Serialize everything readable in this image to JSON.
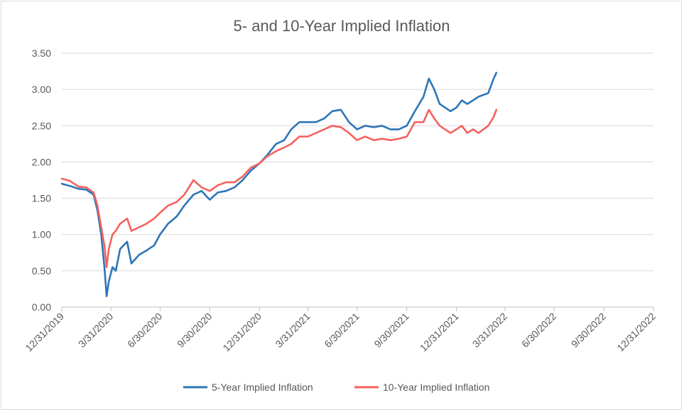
{
  "chart_data": {
    "type": "line",
    "title": "5- and 10-Year Implied Inflation",
    "xlabel": "",
    "ylabel": "",
    "ylim": [
      0,
      3.5
    ],
    "yticks": [
      "0.00",
      "0.50",
      "1.00",
      "1.50",
      "2.00",
      "2.50",
      "3.00",
      "3.50"
    ],
    "xticks": [
      "12/31/2019",
      "3/31/2020",
      "6/30/2020",
      "9/30/2020",
      "12/31/2020",
      "3/31/2021",
      "6/30/2021",
      "9/30/2021",
      "12/31/2021",
      "3/31/2022",
      "6/30/2022",
      "9/30/2022",
      "12/31/2022"
    ],
    "grid": "horizontal",
    "legend": "bottom",
    "series": [
      {
        "name": "5-Year Implied Inflation",
        "color": "#2e75b6",
        "points": [
          [
            "12/31/2019",
            1.7
          ],
          [
            "1/15/2020",
            1.67
          ],
          [
            "1/31/2020",
            1.63
          ],
          [
            "2/14/2020",
            1.62
          ],
          [
            "2/28/2020",
            1.55
          ],
          [
            "3/6/2020",
            1.33
          ],
          [
            "3/13/2020",
            1.0
          ],
          [
            "3/19/2020",
            0.55
          ],
          [
            "3/23/2020",
            0.15
          ],
          [
            "3/27/2020",
            0.35
          ],
          [
            "4/3/2020",
            0.55
          ],
          [
            "4/9/2020",
            0.5
          ],
          [
            "4/17/2020",
            0.8
          ],
          [
            "4/30/2020",
            0.9
          ],
          [
            "5/8/2020",
            0.6
          ],
          [
            "5/22/2020",
            0.72
          ],
          [
            "6/5/2020",
            0.78
          ],
          [
            "6/19/2020",
            0.85
          ],
          [
            "6/30/2020",
            1.0
          ],
          [
            "7/15/2020",
            1.15
          ],
          [
            "7/31/2020",
            1.25
          ],
          [
            "8/14/2020",
            1.4
          ],
          [
            "8/31/2020",
            1.55
          ],
          [
            "9/15/2020",
            1.6
          ],
          [
            "9/30/2020",
            1.48
          ],
          [
            "10/15/2020",
            1.58
          ],
          [
            "10/30/2020",
            1.6
          ],
          [
            "11/15/2020",
            1.65
          ],
          [
            "11/30/2020",
            1.75
          ],
          [
            "12/15/2020",
            1.88
          ],
          [
            "12/31/2020",
            1.98
          ],
          [
            "1/15/2021",
            2.1
          ],
          [
            "1/31/2021",
            2.25
          ],
          [
            "2/15/2021",
            2.3
          ],
          [
            "2/28/2021",
            2.45
          ],
          [
            "3/15/2021",
            2.55
          ],
          [
            "3/31/2021",
            2.55
          ],
          [
            "4/15/2021",
            2.55
          ],
          [
            "4/30/2021",
            2.6
          ],
          [
            "5/15/2021",
            2.7
          ],
          [
            "5/31/2021",
            2.72
          ],
          [
            "6/15/2021",
            2.55
          ],
          [
            "6/30/2021",
            2.45
          ],
          [
            "7/15/2021",
            2.5
          ],
          [
            "7/31/2021",
            2.48
          ],
          [
            "8/15/2021",
            2.5
          ],
          [
            "8/31/2021",
            2.45
          ],
          [
            "9/15/2021",
            2.45
          ],
          [
            "9/30/2021",
            2.5
          ],
          [
            "10/15/2021",
            2.7
          ],
          [
            "10/31/2021",
            2.9
          ],
          [
            "11/10/2021",
            3.15
          ],
          [
            "11/20/2021",
            3.0
          ],
          [
            "11/30/2021",
            2.8
          ],
          [
            "12/10/2021",
            2.75
          ],
          [
            "12/20/2021",
            2.7
          ],
          [
            "12/31/2021",
            2.75
          ],
          [
            "1/10/2022",
            2.85
          ],
          [
            "1/20/2022",
            2.8
          ],
          [
            "1/31/2022",
            2.85
          ],
          [
            "2/10/2022",
            2.9
          ],
          [
            "2/28/2022",
            2.95
          ],
          [
            "3/10/2022",
            3.15
          ],
          [
            "3/15/2022",
            3.23
          ]
        ]
      },
      {
        "name": "10-Year Implied Inflation",
        "color": "#f4625e",
        "points": [
          [
            "12/31/2019",
            1.77
          ],
          [
            "1/15/2020",
            1.74
          ],
          [
            "1/31/2020",
            1.66
          ],
          [
            "2/14/2020",
            1.65
          ],
          [
            "2/28/2020",
            1.58
          ],
          [
            "3/6/2020",
            1.4
          ],
          [
            "3/13/2020",
            1.1
          ],
          [
            "3/19/2020",
            0.85
          ],
          [
            "3/23/2020",
            0.55
          ],
          [
            "3/27/2020",
            0.8
          ],
          [
            "4/3/2020",
            1.0
          ],
          [
            "4/9/2020",
            1.05
          ],
          [
            "4/17/2020",
            1.15
          ],
          [
            "4/30/2020",
            1.22
          ],
          [
            "5/8/2020",
            1.05
          ],
          [
            "5/22/2020",
            1.1
          ],
          [
            "6/5/2020",
            1.15
          ],
          [
            "6/19/2020",
            1.22
          ],
          [
            "6/30/2020",
            1.3
          ],
          [
            "7/15/2020",
            1.4
          ],
          [
            "7/31/2020",
            1.45
          ],
          [
            "8/14/2020",
            1.55
          ],
          [
            "8/31/2020",
            1.75
          ],
          [
            "9/15/2020",
            1.65
          ],
          [
            "9/30/2020",
            1.6
          ],
          [
            "10/15/2020",
            1.68
          ],
          [
            "10/30/2020",
            1.72
          ],
          [
            "11/15/2020",
            1.72
          ],
          [
            "11/30/2020",
            1.8
          ],
          [
            "12/15/2020",
            1.92
          ],
          [
            "12/31/2020",
            1.98
          ],
          [
            "1/15/2021",
            2.08
          ],
          [
            "1/31/2021",
            2.15
          ],
          [
            "2/15/2021",
            2.2
          ],
          [
            "2/28/2021",
            2.25
          ],
          [
            "3/15/2021",
            2.35
          ],
          [
            "3/31/2021",
            2.35
          ],
          [
            "4/15/2021",
            2.4
          ],
          [
            "4/30/2021",
            2.45
          ],
          [
            "5/15/2021",
            2.5
          ],
          [
            "5/31/2021",
            2.48
          ],
          [
            "6/15/2021",
            2.4
          ],
          [
            "6/30/2021",
            2.3
          ],
          [
            "7/15/2021",
            2.35
          ],
          [
            "7/31/2021",
            2.3
          ],
          [
            "8/15/2021",
            2.32
          ],
          [
            "8/31/2021",
            2.3
          ],
          [
            "9/15/2021",
            2.32
          ],
          [
            "9/30/2021",
            2.35
          ],
          [
            "10/15/2021",
            2.55
          ],
          [
            "10/31/2021",
            2.55
          ],
          [
            "11/10/2021",
            2.72
          ],
          [
            "11/20/2021",
            2.6
          ],
          [
            "11/30/2021",
            2.5
          ],
          [
            "12/10/2021",
            2.45
          ],
          [
            "12/20/2021",
            2.4
          ],
          [
            "12/31/2021",
            2.45
          ],
          [
            "1/10/2022",
            2.5
          ],
          [
            "1/20/2022",
            2.4
          ],
          [
            "1/31/2022",
            2.45
          ],
          [
            "2/10/2022",
            2.4
          ],
          [
            "2/28/2022",
            2.5
          ],
          [
            "3/10/2022",
            2.62
          ],
          [
            "3/15/2022",
            2.72
          ]
        ]
      }
    ]
  }
}
